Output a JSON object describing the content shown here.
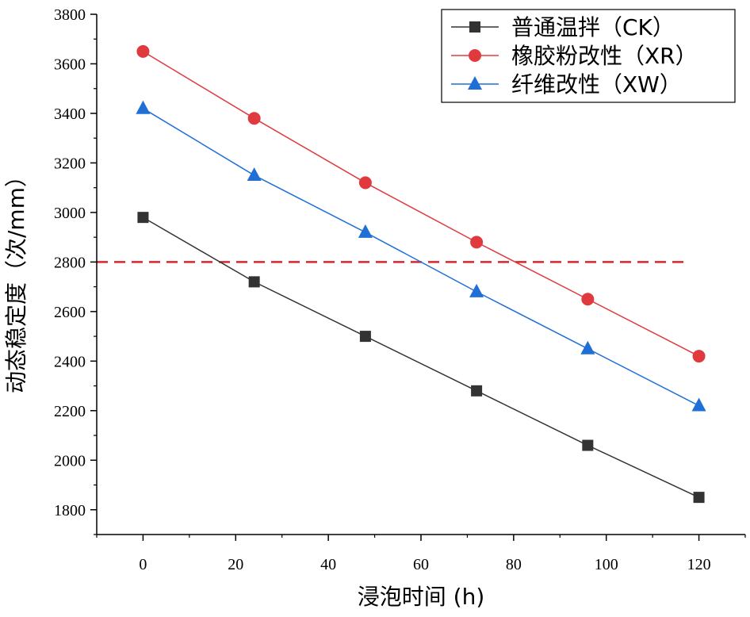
{
  "chart_data": {
    "type": "line",
    "title": "",
    "xlabel": "浸泡时间 (h)",
    "ylabel": "动态稳定度（次/mm）",
    "xlim": [
      -10,
      130
    ],
    "ylim": [
      1700,
      3800
    ],
    "x": [
      0,
      24,
      48,
      72,
      96,
      120
    ],
    "xticks": [
      0,
      20,
      40,
      60,
      80,
      100,
      120
    ],
    "yticks": [
      1800,
      2000,
      2200,
      2400,
      2600,
      2800,
      3000,
      3200,
      3400,
      3600,
      3800
    ],
    "series": [
      {
        "name": "普通温拌（CK）",
        "color": "#333333",
        "marker": "square",
        "values": [
          2980,
          2720,
          2500,
          2280,
          2060,
          1850
        ]
      },
      {
        "name": "橡胶粉改性（XR）",
        "color": "#e03a3e",
        "marker": "circle",
        "values": [
          3650,
          3380,
          3120,
          2880,
          2650,
          2420
        ]
      },
      {
        "name": "纤维改性（XW）",
        "color": "#1f6fd6",
        "marker": "triangle",
        "values": [
          3420,
          3150,
          2920,
          2680,
          2450,
          2220
        ]
      }
    ],
    "reference_line": {
      "y": 2800,
      "x_range": [
        -10,
        117
      ],
      "color": "#d9262c",
      "style": "dashed"
    },
    "legend_position": "top-right"
  }
}
